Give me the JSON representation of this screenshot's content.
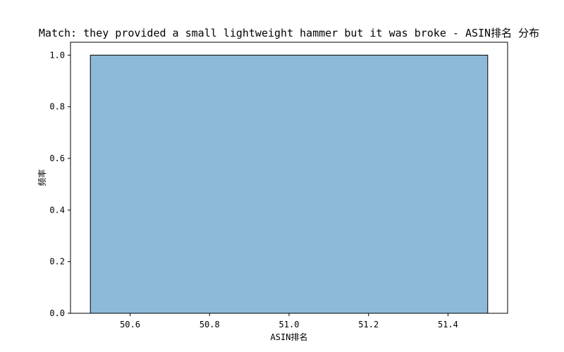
{
  "chart_data": {
    "type": "bar",
    "title": "Match: they provided a small lightweight hammer but it was broke - ASIN排名 分布",
    "xlabel": "ASIN排名",
    "ylabel": "频率",
    "xlim": [
      50.45,
      51.55
    ],
    "ylim": [
      0,
      1.05
    ],
    "xticks": [
      50.6,
      50.8,
      51.0,
      51.2,
      51.4
    ],
    "xtick_labels": [
      "50.6",
      "50.8",
      "51.0",
      "51.2",
      "51.4"
    ],
    "yticks": [
      0,
      0.2,
      0.4,
      0.6,
      0.8,
      1.0
    ],
    "ytick_labels": [
      "0.0",
      "0.2",
      "0.4",
      "0.6",
      "0.8",
      "1.0"
    ],
    "bins": [
      {
        "x_start": 50.5,
        "x_end": 51.5,
        "value": 1.0
      }
    ],
    "bar_color": "#8ebad9",
    "edge_color": "#000000",
    "grid": false,
    "legend": "none"
  }
}
